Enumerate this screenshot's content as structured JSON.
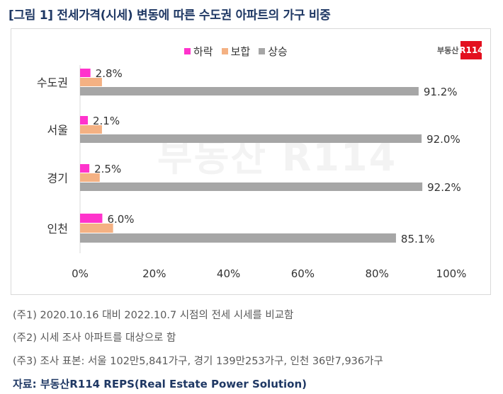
{
  "title": "[그림 1] 전세가격(시세) 변동에 따른 수도권 아파트의 가구 비중",
  "logo": {
    "text": "부동산",
    "box_text": "R114"
  },
  "watermark": "부동산 R114",
  "chart_data": {
    "type": "bar",
    "orientation": "horizontal",
    "categories": [
      "수도권",
      "서울",
      "경기",
      "인천"
    ],
    "series": [
      {
        "name": "하락",
        "color": "#ff33cc",
        "values": [
          2.8,
          2.1,
          2.5,
          6.0
        ],
        "labels": [
          "2.8%",
          "2.1%",
          "2.5%",
          "6.0%"
        ]
      },
      {
        "name": "보합",
        "color": "#f4b183",
        "values": [
          5.9,
          5.9,
          5.3,
          8.9
        ],
        "labels": [
          "",
          "",
          "",
          ""
        ]
      },
      {
        "name": "상승",
        "color": "#a6a6a6",
        "values": [
          91.2,
          92.0,
          92.2,
          85.1
        ],
        "labels": [
          "91.2%",
          "92.0%",
          "92.2%",
          "85.1%"
        ]
      }
    ],
    "xlim": [
      0,
      100
    ],
    "xticks": [
      "0%",
      "20%",
      "40%",
      "60%",
      "80%",
      "100%"
    ],
    "legend_position": "top",
    "grid": false
  },
  "notes": [
    "(주1) 2020.10.16 대비 2022.10.7 시점의 전세 시세를 비교함",
    "(주2) 시세 조사 아파트를 대상으로 함",
    "(주3) 조사 표본: 서울 102만5,841가구, 경기 139만253가구, 인천 36만7,936가구"
  ],
  "source": "자료: 부동산R114 REPS(Real Estate Power Solution)"
}
